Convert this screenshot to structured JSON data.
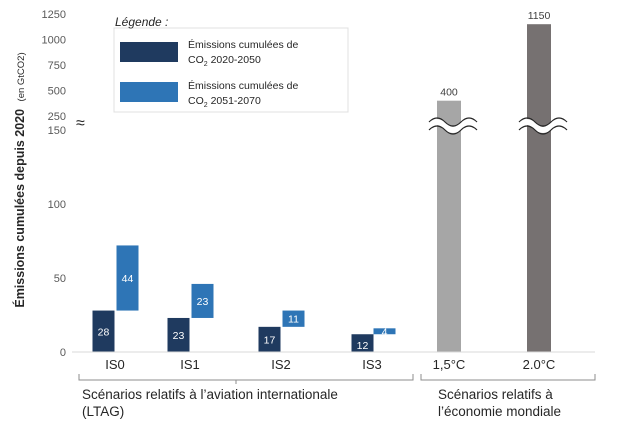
{
  "chart_data": {
    "type": "bar",
    "ylabel": "Émissions cumulées depuis 2020",
    "ylabel_unit": "(en GtCO2)",
    "y_ticks_lower": [
      0,
      50,
      100,
      150
    ],
    "y_ticks_upper": [
      250,
      500,
      750,
      1000,
      1250
    ],
    "y_break": "≈",
    "categories": [
      "IS0",
      "IS1",
      "IS2",
      "IS3",
      "1,5°C",
      "2.0°C"
    ],
    "series": [
      {
        "name": "Émissions cumulées de CO2 2020-2050",
        "values": [
          28,
          23,
          17,
          12,
          null,
          null
        ],
        "color": "#1f3a5f"
      },
      {
        "name": "Émissions cumulées de CO2 2051-2070",
        "values": [
          44,
          23,
          11,
          4,
          null,
          null
        ],
        "color": "#2e75b6"
      }
    ],
    "world_bars": [
      {
        "category": "1,5°C",
        "value": 400,
        "label": "400",
        "color": "#a6a6a6"
      },
      {
        "category": "2.0°C",
        "value": 1150,
        "label": "1150",
        "color": "#767171"
      }
    ],
    "data_labels": {
      "s1": [
        "28",
        "23",
        "17",
        "12"
      ],
      "s2": [
        "44",
        "23",
        "11",
        "4"
      ]
    },
    "groups": [
      {
        "line1": "Scénarios relatifs à l’aviation internationale",
        "line2": "(LTAG)"
      },
      {
        "line1": "Scénarios relatifs à",
        "line2": "l’économie mondiale"
      }
    ],
    "legend": {
      "title": "Légende :",
      "items": [
        {
          "line1": "Émissions cumulées de",
          "line2_main": "CO",
          "line2_sub": "2",
          "line2_rest": " 2020-2050"
        },
        {
          "line1": "Émissions cumulées de",
          "line2_main": "CO",
          "line2_sub": "2",
          "line2_rest": " 2051-2070"
        }
      ],
      "placement": "top-left"
    }
  }
}
